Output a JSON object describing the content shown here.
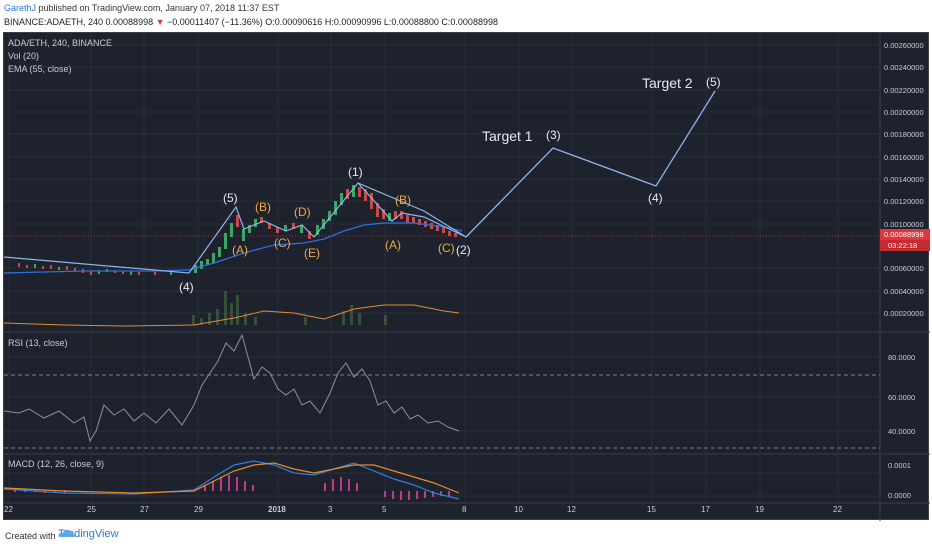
{
  "header": {
    "author": "GarethJ",
    "published": " published on TradingView.com, January 07, 2018 11:37 EST",
    "symbol_line_pre": "BINANCE:ADAETH, 240  0.00088998 ",
    "down_arrow": "▼",
    "change": " −0.00011407 (−11.36%) ",
    "ohlc": "O:0.00090616 H:0.00090996 L:0.00088800 C:0.00088998"
  },
  "legend": {
    "main": "ADA/ETH, 240, BINANCE",
    "vol": "Vol (20)",
    "ema": "EMA (55, close)",
    "rsi": "RSI (13, close)",
    "macd": "MACD (12, 26, close, 9)"
  },
  "price_axis": [
    "0.00260000",
    "0.00240000",
    "0.00220000",
    "0.00200000",
    "0.00180000",
    "0.00160000",
    "0.00140000",
    "0.00120000",
    "0.00100000",
    "0.00060000",
    "0.00040000",
    "0.00020000"
  ],
  "current_price": "0.00088998",
  "countdown": "03:22:18",
  "rsi_axis": [
    "80.0000",
    "60.0000",
    "40.0000"
  ],
  "macd_axis": [
    "0.0001",
    "0.0000"
  ],
  "time_axis": [
    "22",
    "25",
    "27",
    "29",
    "2018",
    "3",
    "5",
    "8",
    "10",
    "12",
    "15",
    "17",
    "19",
    "22"
  ],
  "annotations": {
    "target1": "Target 1",
    "target2": "Target 2",
    "w3": "(3)",
    "w5t": "(5)",
    "w4t": "(4)",
    "w2": "(2)",
    "w1": "(1)",
    "w5": "(5)",
    "w4": "(4)",
    "a1": "(A)",
    "b1": "(B)",
    "c1": "(C)",
    "d1": "(D)",
    "e1": "(E)",
    "a2": "(A)",
    "b2": "(B)",
    "c2": "(C)"
  },
  "footer": {
    "created": "Created with",
    "brand": "TradingView"
  },
  "colors": {
    "bg": "#1e222d",
    "wave_line": "#8fb4e8",
    "orange_label": "#f0a848",
    "white_label": "#e6e9f0",
    "ema": "#2f6fe0",
    "price_tag": "#e0353a"
  }
}
